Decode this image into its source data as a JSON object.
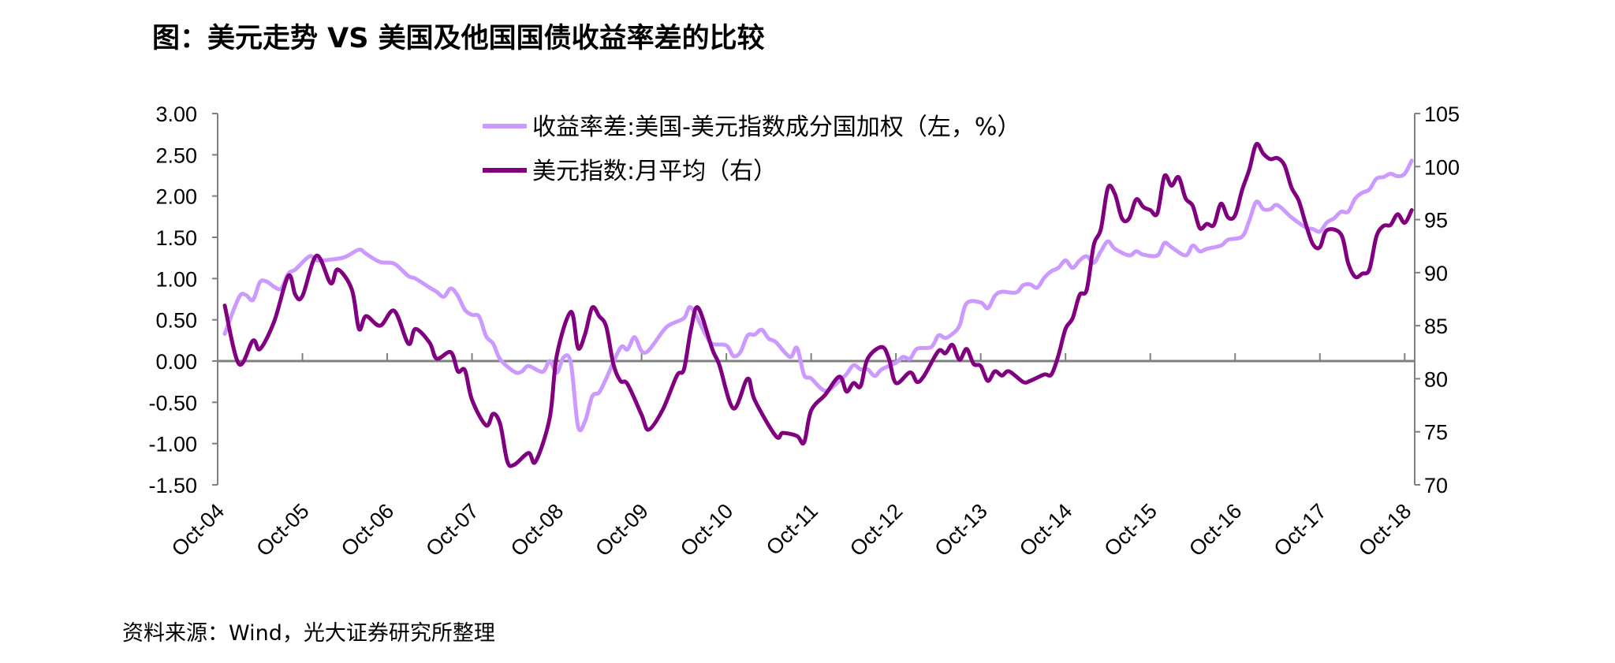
{
  "title": "图：美元走势 VS 美国及他国国债收益率差的比较",
  "source": "资料来源：Wind，光大证券研究所整理",
  "chart_data": {
    "type": "line",
    "title": "图：美元走势 VS 美国及他国国债收益率差的比较",
    "legend_position": "top-center",
    "grid": false,
    "x_tick_labels": [
      "Oct-04",
      "Oct-05",
      "Oct-06",
      "Oct-07",
      "Oct-08",
      "Oct-09",
      "Oct-10",
      "Oct-11",
      "Oct-12",
      "Oct-13",
      "Oct-14",
      "Oct-15",
      "Oct-16",
      "Oct-17",
      "Oct-18"
    ],
    "x_range": [
      "2004-10",
      "2018-11"
    ],
    "y_left": {
      "range": [
        -1.5,
        3.0
      ],
      "tick_labels": [
        "3.00",
        "2.50",
        "2.00",
        "1.50",
        "1.00",
        "0.50",
        "0.00",
        "-0.50",
        "-1.00",
        "-1.50"
      ],
      "negative_label_color": "#FF0000"
    },
    "y_right": {
      "range": [
        70,
        105
      ],
      "tick_labels": [
        "105",
        "100",
        "95",
        "90",
        "85",
        "80",
        "75",
        "70"
      ]
    },
    "series": [
      {
        "name": "收益率差:美国-美元指数成分国加权（左，%）",
        "axis": "left",
        "color": "#CC99FF",
        "points": [
          [
            "2004-11",
            0.33
          ],
          [
            "2005-01",
            0.77
          ],
          [
            "2005-02",
            0.8
          ],
          [
            "2005-03",
            0.74
          ],
          [
            "2005-04",
            0.96
          ],
          [
            "2005-05",
            0.96
          ],
          [
            "2005-06",
            0.9
          ],
          [
            "2005-07",
            0.88
          ],
          [
            "2005-08",
            1.06
          ],
          [
            "2005-09",
            1.11
          ],
          [
            "2005-11",
            1.27
          ],
          [
            "2005-12",
            1.22
          ],
          [
            "2006-02",
            1.23
          ],
          [
            "2006-04",
            1.26
          ],
          [
            "2006-06",
            1.35
          ],
          [
            "2006-07",
            1.3
          ],
          [
            "2006-09",
            1.2
          ],
          [
            "2006-11",
            1.18
          ],
          [
            "2007-01",
            1.03
          ],
          [
            "2007-02",
            1.0
          ],
          [
            "2007-04",
            0.89
          ],
          [
            "2007-05",
            0.84
          ],
          [
            "2007-06",
            0.78
          ],
          [
            "2007-07",
            0.88
          ],
          [
            "2007-08",
            0.79
          ],
          [
            "2007-09",
            0.62
          ],
          [
            "2007-10",
            0.56
          ],
          [
            "2007-11",
            0.54
          ],
          [
            "2007-12",
            0.3
          ],
          [
            "2008-01",
            0.21
          ],
          [
            "2008-02",
            0.02
          ],
          [
            "2008-04",
            -0.13
          ],
          [
            "2008-05",
            -0.13
          ],
          [
            "2008-06",
            -0.06
          ],
          [
            "2008-08",
            -0.13
          ],
          [
            "2008-09",
            0.0
          ],
          [
            "2008-10",
            -0.14
          ],
          [
            "2008-11",
            0.05
          ],
          [
            "2008-12",
            -0.03
          ],
          [
            "2009-01",
            -0.79
          ],
          [
            "2009-02",
            -0.73
          ],
          [
            "2009-03",
            -0.43
          ],
          [
            "2009-04",
            -0.38
          ],
          [
            "2009-05",
            -0.21
          ],
          [
            "2009-07",
            0.16
          ],
          [
            "2009-08",
            0.14
          ],
          [
            "2009-09",
            0.29
          ],
          [
            "2009-10",
            0.12
          ],
          [
            "2009-11",
            0.13
          ],
          [
            "2010-01",
            0.36
          ],
          [
            "2010-02",
            0.44
          ],
          [
            "2010-04",
            0.52
          ],
          [
            "2010-05",
            0.65
          ],
          [
            "2010-07",
            0.33
          ],
          [
            "2010-08",
            0.21
          ],
          [
            "2010-10",
            0.19
          ],
          [
            "2010-11",
            0.06
          ],
          [
            "2010-12",
            0.11
          ],
          [
            "2011-01",
            0.31
          ],
          [
            "2011-02",
            0.32
          ],
          [
            "2011-03",
            0.38
          ],
          [
            "2011-04",
            0.27
          ],
          [
            "2011-05",
            0.23
          ],
          [
            "2011-07",
            0.05
          ],
          [
            "2011-08",
            0.16
          ],
          [
            "2011-09",
            -0.17
          ],
          [
            "2011-10",
            -0.21
          ],
          [
            "2011-12",
            -0.36
          ],
          [
            "2012-02",
            -0.24
          ],
          [
            "2012-03",
            -0.16
          ],
          [
            "2012-04",
            -0.05
          ],
          [
            "2012-05",
            -0.1
          ],
          [
            "2012-06",
            -0.1
          ],
          [
            "2012-07",
            -0.18
          ],
          [
            "2012-08",
            -0.1
          ],
          [
            "2012-10",
            -0.02
          ],
          [
            "2012-11",
            0.05
          ],
          [
            "2012-12",
            0.03
          ],
          [
            "2013-01",
            0.15
          ],
          [
            "2013-03",
            0.17
          ],
          [
            "2013-04",
            0.31
          ],
          [
            "2013-05",
            0.28
          ],
          [
            "2013-06",
            0.33
          ],
          [
            "2013-07",
            0.43
          ],
          [
            "2013-08",
            0.7
          ],
          [
            "2013-10",
            0.71
          ],
          [
            "2013-11",
            0.64
          ],
          [
            "2013-12",
            0.79
          ],
          [
            "2014-01",
            0.84
          ],
          [
            "2014-03",
            0.83
          ],
          [
            "2014-04",
            0.92
          ],
          [
            "2014-05",
            0.93
          ],
          [
            "2014-06",
            0.89
          ],
          [
            "2014-07",
            1.01
          ],
          [
            "2014-08",
            1.09
          ],
          [
            "2014-09",
            1.13
          ],
          [
            "2014-10",
            1.22
          ],
          [
            "2014-11",
            1.13
          ],
          [
            "2014-12",
            1.22
          ],
          [
            "2015-01",
            1.27
          ],
          [
            "2015-02",
            1.19
          ],
          [
            "2015-03",
            1.33
          ],
          [
            "2015-04",
            1.45
          ],
          [
            "2015-05",
            1.36
          ],
          [
            "2015-07",
            1.28
          ],
          [
            "2015-08",
            1.33
          ],
          [
            "2015-09",
            1.29
          ],
          [
            "2015-11",
            1.28
          ],
          [
            "2015-12",
            1.43
          ],
          [
            "2016-01",
            1.38
          ],
          [
            "2016-03",
            1.28
          ],
          [
            "2016-04",
            1.4
          ],
          [
            "2016-05",
            1.33
          ],
          [
            "2016-06",
            1.36
          ],
          [
            "2016-08",
            1.4
          ],
          [
            "2016-09",
            1.47
          ],
          [
            "2016-11",
            1.51
          ],
          [
            "2016-12",
            1.7
          ],
          [
            "2017-01",
            1.93
          ],
          [
            "2017-02",
            1.84
          ],
          [
            "2017-03",
            1.84
          ],
          [
            "2017-04",
            1.89
          ],
          [
            "2017-06",
            1.74
          ],
          [
            "2017-08",
            1.62
          ],
          [
            "2017-09",
            1.6
          ],
          [
            "2017-10",
            1.57
          ],
          [
            "2017-11",
            1.68
          ],
          [
            "2017-12",
            1.73
          ],
          [
            "2018-01",
            1.81
          ],
          [
            "2018-02",
            1.81
          ],
          [
            "2018-03",
            1.97
          ],
          [
            "2018-04",
            2.04
          ],
          [
            "2018-05",
            2.08
          ],
          [
            "2018-06",
            2.21
          ],
          [
            "2018-07",
            2.23
          ],
          [
            "2018-08",
            2.27
          ],
          [
            "2018-09",
            2.24
          ],
          [
            "2018-10",
            2.27
          ],
          [
            "2018-11",
            2.43
          ]
        ]
      },
      {
        "name": "美元指数:月平均（右）",
        "axis": "right",
        "color": "#800080",
        "points": [
          [
            "2004-11",
            86.9
          ],
          [
            "2005-01",
            81.4
          ],
          [
            "2005-03",
            83.6
          ],
          [
            "2005-04",
            82.8
          ],
          [
            "2005-06",
            85.4
          ],
          [
            "2005-08",
            89.7
          ],
          [
            "2005-09",
            87.9
          ],
          [
            "2005-10",
            87.8
          ],
          [
            "2005-12",
            91.6
          ],
          [
            "2006-02",
            89.0
          ],
          [
            "2006-03",
            90.3
          ],
          [
            "2006-05",
            88.4
          ],
          [
            "2006-06",
            84.7
          ],
          [
            "2006-07",
            85.9
          ],
          [
            "2006-09",
            85.0
          ],
          [
            "2006-11",
            86.4
          ],
          [
            "2007-01",
            83.3
          ],
          [
            "2007-02",
            84.7
          ],
          [
            "2007-04",
            83.4
          ],
          [
            "2007-05",
            81.9
          ],
          [
            "2007-07",
            82.5
          ],
          [
            "2007-08",
            80.7
          ],
          [
            "2007-09",
            80.8
          ],
          [
            "2007-10",
            78.0
          ],
          [
            "2007-12",
            75.6
          ],
          [
            "2008-01",
            76.7
          ],
          [
            "2008-02",
            75.7
          ],
          [
            "2008-03",
            72.2
          ],
          [
            "2008-04",
            71.9
          ],
          [
            "2008-06",
            73.0
          ],
          [
            "2008-07",
            72.2
          ],
          [
            "2008-09",
            76.3
          ],
          [
            "2008-10",
            82.2
          ],
          [
            "2008-12",
            86.3
          ],
          [
            "2009-01",
            82.9
          ],
          [
            "2009-02",
            84.2
          ],
          [
            "2009-03",
            86.7
          ],
          [
            "2009-04",
            85.9
          ],
          [
            "2009-05",
            84.9
          ],
          [
            "2009-06",
            81.4
          ],
          [
            "2009-07",
            79.8
          ],
          [
            "2009-08",
            79.5
          ],
          [
            "2009-10",
            76.6
          ],
          [
            "2009-11",
            75.2
          ],
          [
            "2010-01",
            77.1
          ],
          [
            "2010-03",
            80.3
          ],
          [
            "2010-04",
            80.9
          ],
          [
            "2010-05",
            84.7
          ],
          [
            "2010-06",
            86.7
          ],
          [
            "2010-08",
            82.8
          ],
          [
            "2010-09",
            81.3
          ],
          [
            "2010-11",
            77.2
          ],
          [
            "2011-01",
            80.0
          ],
          [
            "2011-02",
            78.0
          ],
          [
            "2011-05",
            74.6
          ],
          [
            "2011-06",
            74.9
          ],
          [
            "2011-08",
            74.6
          ],
          [
            "2011-09",
            74.0
          ],
          [
            "2011-10",
            77.0
          ],
          [
            "2011-12",
            78.5
          ],
          [
            "2012-02",
            80.2
          ],
          [
            "2012-03",
            78.8
          ],
          [
            "2012-04",
            79.6
          ],
          [
            "2012-05",
            79.3
          ],
          [
            "2012-06",
            81.9
          ],
          [
            "2012-08",
            83.0
          ],
          [
            "2012-09",
            81.9
          ],
          [
            "2012-10",
            79.6
          ],
          [
            "2012-12",
            80.6
          ],
          [
            "2013-01",
            79.7
          ],
          [
            "2013-02",
            80.3
          ],
          [
            "2013-04",
            82.6
          ],
          [
            "2013-05",
            82.4
          ],
          [
            "2013-06",
            83.2
          ],
          [
            "2013-07",
            81.8
          ],
          [
            "2013-08",
            82.8
          ],
          [
            "2013-09",
            81.4
          ],
          [
            "2013-10",
            81.2
          ],
          [
            "2013-11",
            79.8
          ],
          [
            "2013-12",
            80.7
          ],
          [
            "2014-01",
            80.3
          ],
          [
            "2014-02",
            80.7
          ],
          [
            "2014-04",
            79.7
          ],
          [
            "2014-05",
            79.8
          ],
          [
            "2014-07",
            80.4
          ],
          [
            "2014-08",
            80.4
          ],
          [
            "2014-09",
            82.2
          ],
          [
            "2014-10",
            84.7
          ],
          [
            "2014-11",
            85.7
          ],
          [
            "2014-12",
            87.9
          ],
          [
            "2015-01",
            88.4
          ],
          [
            "2015-02",
            92.6
          ],
          [
            "2015-03",
            94.1
          ],
          [
            "2015-04",
            98.0
          ],
          [
            "2015-05",
            97.4
          ],
          [
            "2015-06",
            95.1
          ],
          [
            "2015-07",
            95.1
          ],
          [
            "2015-08",
            96.9
          ],
          [
            "2015-09",
            96.2
          ],
          [
            "2015-10",
            95.9
          ],
          [
            "2015-11",
            95.6
          ],
          [
            "2015-12",
            99.1
          ],
          [
            "2016-01",
            98.2
          ],
          [
            "2016-02",
            99.0
          ],
          [
            "2016-03",
            97.0
          ],
          [
            "2016-04",
            96.3
          ],
          [
            "2016-05",
            94.2
          ],
          [
            "2016-06",
            94.6
          ],
          [
            "2016-07",
            94.5
          ],
          [
            "2016-08",
            96.5
          ],
          [
            "2016-09",
            95.2
          ],
          [
            "2016-10",
            95.4
          ],
          [
            "2016-11",
            97.8
          ],
          [
            "2016-12",
            99.7
          ],
          [
            "2017-01",
            102.1
          ],
          [
            "2017-02",
            101.2
          ],
          [
            "2017-03",
            100.7
          ],
          [
            "2017-04",
            100.8
          ],
          [
            "2017-05",
            100.1
          ],
          [
            "2017-06",
            98.0
          ],
          [
            "2017-07",
            96.8
          ],
          [
            "2017-08",
            94.6
          ],
          [
            "2017-09",
            92.7
          ],
          [
            "2017-10",
            92.4
          ],
          [
            "2017-11",
            94.0
          ],
          [
            "2018-01",
            93.6
          ],
          [
            "2018-02",
            90.9
          ],
          [
            "2018-03",
            89.6
          ],
          [
            "2018-04",
            89.9
          ],
          [
            "2018-05",
            90.3
          ],
          [
            "2018-06",
            93.4
          ],
          [
            "2018-07",
            94.4
          ],
          [
            "2018-08",
            94.5
          ],
          [
            "2018-09",
            95.5
          ],
          [
            "2018-10",
            94.7
          ],
          [
            "2018-11",
            95.9
          ]
        ]
      }
    ]
  }
}
